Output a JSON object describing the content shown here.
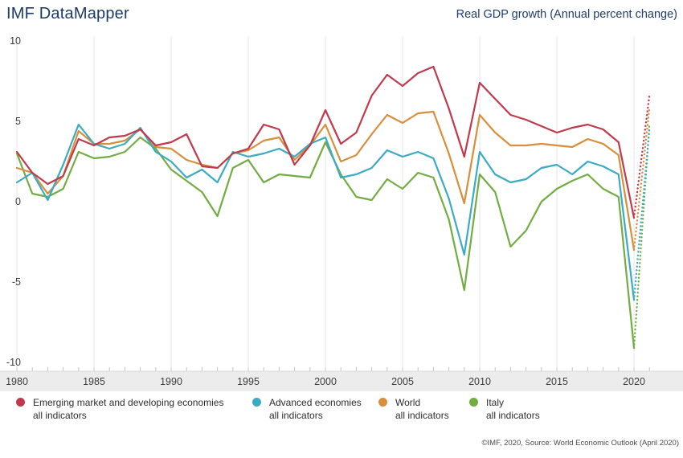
{
  "header": {
    "title": "IMF DataMapper",
    "subtitle": "Real GDP growth (Annual percent change)"
  },
  "footer": {
    "source": "©IMF, 2020, Source: World Economic Outlook (April 2020)"
  },
  "legend": [
    {
      "label": "Emerging market and developing economies",
      "sublabel": "all indicators",
      "color": "#c03a4d"
    },
    {
      "label": "Advanced economies",
      "sublabel": "all indicators",
      "color": "#3babc4"
    },
    {
      "label": "World",
      "sublabel": "all indicators",
      "color": "#d88e3a"
    },
    {
      "label": "Italy",
      "sublabel": "all indicators",
      "color": "#71ad40"
    }
  ],
  "chart_data": {
    "type": "line",
    "title": "Real GDP growth (Annual percent change)",
    "xlabel": "",
    "ylabel": "",
    "x": [
      1980,
      1981,
      1982,
      1983,
      1984,
      1985,
      1986,
      1987,
      1988,
      1989,
      1990,
      1991,
      1992,
      1993,
      1994,
      1995,
      1996,
      1997,
      1998,
      1999,
      2000,
      2001,
      2002,
      2003,
      2004,
      2005,
      2006,
      2007,
      2008,
      2009,
      2010,
      2011,
      2012,
      2013,
      2014,
      2015,
      2016,
      2017,
      2018,
      2019,
      2020,
      2021
    ],
    "x_tick_labels": [
      "1980",
      "1985",
      "1990",
      "1995",
      "2000",
      "2005",
      "2010",
      "2015",
      "2020"
    ],
    "x_tick_years": [
      1980,
      1985,
      1990,
      1995,
      2000,
      2005,
      2010,
      2015,
      2020
    ],
    "y_ticks": [
      10,
      5,
      0,
      -5,
      -10
    ],
    "ylim": [
      -10,
      10
    ],
    "xlim": [
      1980,
      2021.5
    ],
    "grid": "vertical-5-year",
    "legend_position": "bottom",
    "projection_start_year": 2020,
    "projection_style": "dotted",
    "series": [
      {
        "name": "Emerging market and developing economies",
        "subname": "all indicators",
        "color": "#c03a4d",
        "values": [
          3.1,
          1.8,
          1.1,
          1.6,
          3.9,
          3.5,
          4.0,
          4.1,
          4.5,
          3.5,
          3.7,
          4.2,
          2.2,
          2.1,
          3.0,
          3.3,
          4.8,
          4.5,
          2.3,
          3.5,
          5.7,
          3.6,
          4.3,
          6.6,
          7.9,
          7.2,
          8.0,
          8.4,
          5.8,
          2.8,
          7.4,
          6.4,
          5.4,
          5.1,
          4.7,
          4.3,
          4.6,
          4.8,
          4.5,
          3.7,
          -1.0,
          6.6
        ]
      },
      {
        "name": "Advanced economies",
        "subname": "all indicators",
        "color": "#3babc4",
        "values": [
          1.2,
          1.8,
          0.1,
          2.3,
          4.8,
          3.6,
          3.3,
          3.6,
          4.6,
          3.1,
          2.5,
          1.5,
          2.0,
          1.2,
          3.1,
          2.8,
          3.0,
          3.3,
          2.8,
          3.6,
          4.0,
          1.5,
          1.7,
          2.1,
          3.2,
          2.8,
          3.1,
          2.7,
          0.2,
          -3.3,
          3.1,
          1.7,
          1.2,
          1.4,
          2.1,
          2.3,
          1.7,
          2.5,
          2.2,
          1.7,
          -6.1,
          4.5
        ]
      },
      {
        "name": "World",
        "subname": "all indicators",
        "color": "#d88e3a",
        "values": [
          2.1,
          1.8,
          0.5,
          1.6,
          4.4,
          3.6,
          3.6,
          3.8,
          4.5,
          3.4,
          3.3,
          2.6,
          2.3,
          2.1,
          3.0,
          3.2,
          3.8,
          4.0,
          2.6,
          3.5,
          4.8,
          2.5,
          2.9,
          4.2,
          5.4,
          4.9,
          5.5,
          5.6,
          3.0,
          -0.1,
          5.4,
          4.3,
          3.5,
          3.5,
          3.6,
          3.5,
          3.4,
          3.9,
          3.6,
          2.9,
          -3.0,
          5.8
        ]
      },
      {
        "name": "Italy",
        "subname": "all indicators",
        "color": "#71ad40",
        "values": [
          3.0,
          0.5,
          0.3,
          0.8,
          3.1,
          2.7,
          2.8,
          3.1,
          4.0,
          3.3,
          2.0,
          1.3,
          0.6,
          -0.9,
          2.1,
          2.6,
          1.2,
          1.7,
          1.6,
          1.5,
          3.7,
          1.7,
          0.3,
          0.1,
          1.4,
          0.8,
          1.8,
          1.5,
          -1.1,
          -5.5,
          1.7,
          0.6,
          -2.8,
          -1.8,
          0.0,
          0.8,
          1.3,
          1.7,
          0.8,
          0.3,
          -9.1,
          4.8
        ]
      }
    ]
  },
  "style": {
    "grid_color": "#e7e7e7",
    "axis_band_color": "#ececec",
    "axis_band_border": "#d8d8d8",
    "tick_color": "#c4c4c4",
    "tick_label_color": "#3d3d3d",
    "title_color": "#1c3b66"
  }
}
